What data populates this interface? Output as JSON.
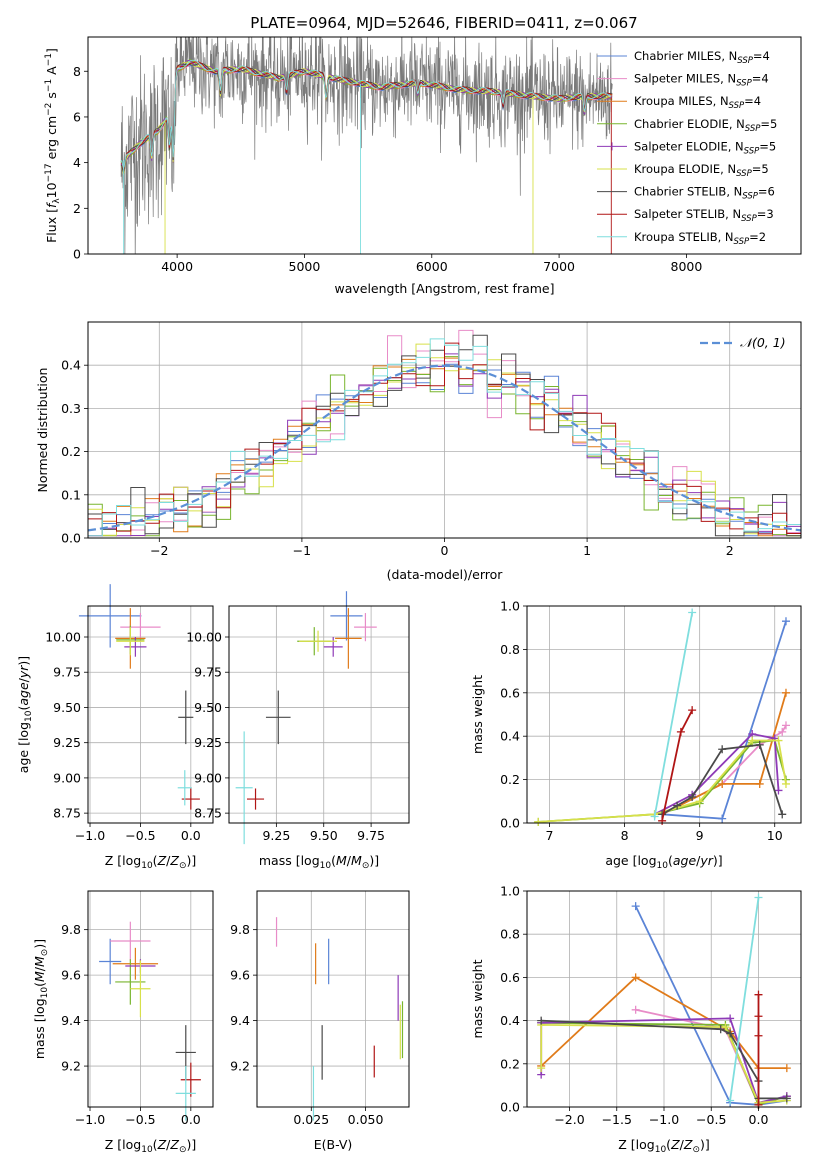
{
  "colors": {
    "chabrier_miles": "#5b84d6",
    "salpeter_miles": "#e88cc8",
    "kroupa_miles": "#e07b1a",
    "chabrier_elodie": "#79b52f",
    "salpeter_elodie": "#8e3ab7",
    "kroupa_elodie": "#d7e04a",
    "chabrier_stelib": "#4a4a4a",
    "salpeter_stelib": "#b01515",
    "kroupa_stelib": "#7fdede",
    "data": "#7a7a7a",
    "gaussian": "#5b8fd6"
  },
  "legend_spectrum": [
    {
      "key": "chabrier_miles",
      "pre": "Chabrier MILES, N",
      "sub": "SSP",
      "post": "=4"
    },
    {
      "key": "salpeter_miles",
      "pre": "Salpeter MILES, N",
      "sub": "SSP",
      "post": "=4"
    },
    {
      "key": "kroupa_miles",
      "pre": "Kroupa MILES, N",
      "sub": "SSP",
      "post": "=4"
    },
    {
      "key": "chabrier_elodie",
      "pre": "Chabrier ELODIE, N",
      "sub": "SSP",
      "post": "=5"
    },
    {
      "key": "salpeter_elodie",
      "pre": "Salpeter ELODIE, N",
      "sub": "SSP",
      "post": "=5"
    },
    {
      "key": "kroupa_elodie",
      "pre": "Kroupa ELODIE, N",
      "sub": "SSP",
      "post": "=5"
    },
    {
      "key": "chabrier_stelib",
      "pre": "Chabrier STELIB, N",
      "sub": "SSP",
      "post": "=6"
    },
    {
      "key": "salpeter_stelib",
      "pre": "Salpeter STELIB, N",
      "sub": "SSP",
      "post": "=3"
    },
    {
      "key": "kroupa_stelib",
      "pre": "Kroupa STELIB, N",
      "sub": "SSP",
      "post": "=2"
    }
  ],
  "chart_data": [
    {
      "id": "spectrum",
      "type": "line",
      "title": "PLATE=0964, MJD=52646, FIBERID=0411, z=0.067",
      "xlabel": "wavelength [Angstrom, rest frame]",
      "ylabel": "Flux [f_λ 10^-17 erg cm^-2 s^-1 A^-1]",
      "xlim": [
        3300,
        8900
      ],
      "ylim": [
        0,
        9.5
      ],
      "xticks": [
        4000,
        5000,
        6000,
        7000,
        8000
      ],
      "yticks": [
        0,
        2,
        4,
        6,
        8
      ],
      "continuum": [
        [
          3560,
          4.0
        ],
        [
          3700,
          4.8
        ],
        [
          3850,
          5.4
        ],
        [
          3950,
          6.2
        ],
        [
          4000,
          8.1
        ],
        [
          4100,
          8.4
        ],
        [
          4300,
          8.0
        ],
        [
          4500,
          8.1
        ],
        [
          4800,
          7.7
        ],
        [
          5000,
          8.0
        ],
        [
          5300,
          7.6
        ],
        [
          5600,
          7.3
        ],
        [
          5900,
          7.5
        ],
        [
          6200,
          7.2
        ],
        [
          6500,
          7.1
        ],
        [
          6800,
          6.9
        ],
        [
          7000,
          6.8
        ],
        [
          7200,
          6.9
        ],
        [
          7400,
          6.9
        ]
      ],
      "dips": [
        [
          3580,
          3.6
        ],
        [
          3800,
          4.2
        ],
        [
          3940,
          4.6
        ],
        [
          3970,
          4.1
        ],
        [
          4340,
          7.0
        ],
        [
          4860,
          7.1
        ],
        [
          5170,
          6.9
        ],
        [
          5890,
          7.0
        ],
        [
          6560,
          6.5
        ],
        [
          7200,
          6.2
        ]
      ]
    },
    {
      "id": "residuals",
      "type": "histogram",
      "xlabel": "(data-model)/error",
      "ylabel": "Normed distribution",
      "xlim": [
        -2.5,
        2.5
      ],
      "ylim": [
        0,
        0.5
      ],
      "xticks": [
        -2,
        -1,
        0,
        1,
        2
      ],
      "yticks": [
        0.0,
        0.1,
        0.2,
        0.3,
        0.4
      ],
      "bin_width": 0.1,
      "legend": "𝒩(0, 1)",
      "gaussian": {
        "mean": 0,
        "sigma": 1
      }
    },
    {
      "id": "age_vs_Z",
      "type": "scatter-errorbar",
      "xlabel": "Z [log10(Z/Z☉)]",
      "ylabel": "age [log10(age/yr)]",
      "xlim": [
        -1.02,
        0.22
      ],
      "ylim": [
        8.68,
        10.22
      ],
      "xticks": [
        -1.0,
        -0.5,
        0.0
      ],
      "yticks": [
        8.75,
        9.0,
        9.25,
        9.5,
        9.75,
        10.0
      ],
      "points": [
        {
          "key": "chabrier_miles",
          "x": -0.8,
          "xerr": 0.62,
          "y": 10.15,
          "yerr": 0.45
        },
        {
          "key": "salpeter_miles",
          "x": -0.5,
          "xerr": 0.4,
          "y": 10.07,
          "yerr": 0.2
        },
        {
          "key": "kroupa_miles",
          "x": -0.6,
          "xerr": 0.3,
          "y": 9.99,
          "yerr": 0.43
        },
        {
          "key": "chabrier_elodie",
          "x": -0.6,
          "xerr": 0.28,
          "y": 9.98,
          "yerr": 0.2
        },
        {
          "key": "salpeter_elodie",
          "x": -0.55,
          "xerr": 0.22,
          "y": 9.93,
          "yerr": 0.14
        },
        {
          "key": "kroupa_elodie",
          "x": -0.6,
          "xerr": 0.28,
          "y": 9.97,
          "yerr": 0.2
        },
        {
          "key": "chabrier_stelib",
          "x": -0.05,
          "xerr": 0.15,
          "y": 9.43,
          "yerr": 0.38
        },
        {
          "key": "salpeter_stelib",
          "x": 0.0,
          "xerr": 0.18,
          "y": 8.85,
          "yerr": 0.15
        },
        {
          "key": "kroupa_stelib",
          "x": -0.06,
          "xerr": 0.14,
          "y": 8.93,
          "yerr": 0.25
        }
      ]
    },
    {
      "id": "age_vs_mass",
      "type": "scatter-errorbar",
      "xlabel": "mass [log10(M/M☉)]",
      "ylabel": "",
      "xlim": [
        9.0,
        9.95
      ],
      "ylim": [
        8.68,
        10.22
      ],
      "xticks": [
        9.25,
        9.5,
        9.75
      ],
      "yticks": [
        8.75,
        9.0,
        9.25,
        9.5,
        9.75,
        10.0
      ],
      "points": [
        {
          "key": "chabrier_miles",
          "x": 9.62,
          "xerr": 0.17,
          "y": 10.15,
          "yerr": 0.35
        },
        {
          "key": "salpeter_miles",
          "x": 9.72,
          "xerr": 0.12,
          "y": 10.07,
          "yerr": 0.2
        },
        {
          "key": "kroupa_miles",
          "x": 9.63,
          "xerr": 0.14,
          "y": 9.99,
          "yerr": 0.43
        },
        {
          "key": "chabrier_elodie",
          "x": 9.45,
          "xerr": 0.18,
          "y": 9.97,
          "yerr": 0.2
        },
        {
          "key": "salpeter_elodie",
          "x": 9.55,
          "xerr": 0.1,
          "y": 9.93,
          "yerr": 0.14
        },
        {
          "key": "kroupa_elodie",
          "x": 9.47,
          "xerr": 0.2,
          "y": 9.97,
          "yerr": 0.15
        },
        {
          "key": "chabrier_stelib",
          "x": 9.26,
          "xerr": 0.13,
          "y": 9.43,
          "yerr": 0.38
        },
        {
          "key": "salpeter_stelib",
          "x": 9.14,
          "xerr": 0.09,
          "y": 8.85,
          "yerr": 0.15
        },
        {
          "key": "kroupa_stelib",
          "x": 9.08,
          "xerr": 0.09,
          "y": 8.93,
          "yerr": 0.8
        }
      ]
    },
    {
      "id": "weight_vs_age",
      "type": "line",
      "xlabel": "age [log10(age/yr)]",
      "ylabel": "mass weight",
      "xlim": [
        6.7,
        10.35
      ],
      "ylim": [
        0,
        1.0
      ],
      "xticks": [
        7,
        8,
        9,
        10
      ],
      "yticks": [
        0.0,
        0.2,
        0.4,
        0.6,
        0.8,
        1.0
      ],
      "series": [
        {
          "key": "chabrier_miles",
          "points": [
            [
              8.5,
              0.04
            ],
            [
              9.3,
              0.02
            ],
            [
              10.15,
              0.93
            ]
          ]
        },
        {
          "key": "salpeter_miles",
          "points": [
            [
              8.5,
              0.04
            ],
            [
              9.3,
              0.18
            ],
            [
              9.8,
              0.36
            ],
            [
              10.1,
              0.42
            ],
            [
              10.15,
              0.45
            ]
          ]
        },
        {
          "key": "kroupa_miles",
          "points": [
            [
              8.5,
              0.04
            ],
            [
              9.3,
              0.18
            ],
            [
              9.8,
              0.18
            ],
            [
              10.15,
              0.6
            ]
          ]
        },
        {
          "key": "chabrier_elodie",
          "points": [
            [
              6.85,
              0.005
            ],
            [
              8.4,
              0.04
            ],
            [
              9.0,
              0.09
            ],
            [
              9.7,
              0.37
            ],
            [
              10.0,
              0.38
            ],
            [
              10.15,
              0.2
            ]
          ]
        },
        {
          "key": "salpeter_elodie",
          "points": [
            [
              8.4,
              0.04
            ],
            [
              8.9,
              0.13
            ],
            [
              9.7,
              0.41
            ],
            [
              10.0,
              0.39
            ],
            [
              10.05,
              0.15
            ]
          ]
        },
        {
          "key": "kroupa_elodie",
          "points": [
            [
              6.85,
              0.005
            ],
            [
              8.4,
              0.04
            ],
            [
              9.0,
              0.1
            ],
            [
              9.7,
              0.38
            ],
            [
              10.05,
              0.38
            ],
            [
              10.15,
              0.18
            ]
          ]
        },
        {
          "key": "chabrier_stelib",
          "points": [
            [
              8.5,
              0.04
            ],
            [
              8.7,
              0.08
            ],
            [
              8.9,
              0.12
            ],
            [
              9.3,
              0.34
            ],
            [
              9.8,
              0.36
            ],
            [
              10.1,
              0.04
            ]
          ]
        },
        {
          "key": "salpeter_stelib",
          "points": [
            [
              8.5,
              0.01
            ],
            [
              8.75,
              0.42
            ],
            [
              8.9,
              0.52
            ]
          ]
        },
        {
          "key": "kroupa_stelib",
          "points": [
            [
              8.4,
              0.03
            ],
            [
              8.9,
              0.97
            ]
          ]
        }
      ]
    },
    {
      "id": "mass_vs_Z",
      "type": "scatter-errorbar",
      "xlabel": "Z [log10(Z/Z☉)]",
      "ylabel": "mass [log10(M/M☉)]",
      "xlim": [
        -1.02,
        0.22
      ],
      "ylim": [
        9.02,
        9.97
      ],
      "xticks": [
        -1.0,
        -0.5,
        0.0
      ],
      "yticks": [
        9.2,
        9.4,
        9.6,
        9.8
      ],
      "points": [
        {
          "key": "chabrier_miles",
          "x": -0.8,
          "xerr": 0.22,
          "y": 9.66,
          "yerr": 0.2
        },
        {
          "key": "salpeter_miles",
          "x": -0.6,
          "xerr": 0.4,
          "y": 9.75,
          "yerr": 0.17
        },
        {
          "key": "kroupa_miles",
          "x": -0.55,
          "xerr": 0.45,
          "y": 9.65,
          "yerr": 0.14
        },
        {
          "key": "chabrier_elodie",
          "x": -0.6,
          "xerr": 0.3,
          "y": 9.57,
          "yerr": 0.2
        },
        {
          "key": "salpeter_elodie",
          "x": -0.5,
          "xerr": 0.3,
          "y": 9.64,
          "yerr": 0.06
        },
        {
          "key": "kroupa_elodie",
          "x": -0.5,
          "xerr": 0.2,
          "y": 9.54,
          "yerr": 0.25
        },
        {
          "key": "chabrier_stelib",
          "x": -0.05,
          "xerr": 0.2,
          "y": 9.26,
          "yerr": 0.24
        },
        {
          "key": "salpeter_stelib",
          "x": 0.0,
          "xerr": 0.2,
          "y": 9.14,
          "yerr": 0.15
        },
        {
          "key": "kroupa_stelib",
          "x": -0.05,
          "xerr": 0.2,
          "y": 9.08,
          "yerr": 0.24
        }
      ]
    },
    {
      "id": "mass_vs_EBV",
      "type": "scatter-errorbar",
      "xlabel": "E(B-V)",
      "ylabel": "",
      "xlim": [
        0.0,
        0.07
      ],
      "ylim": [
        9.02,
        9.97
      ],
      "xticks": [
        0.025,
        0.05
      ],
      "yticks": [
        9.2,
        9.4,
        9.6,
        9.8
      ],
      "points": [
        {
          "key": "chabrier_miles",
          "x": 0.033,
          "xerr": 0,
          "y": 9.66,
          "yerr": 0.2
        },
        {
          "key": "salpeter_miles",
          "x": 0.009,
          "xerr": 0,
          "y": 9.79,
          "yerr": 0.13
        },
        {
          "key": "kroupa_miles",
          "x": 0.027,
          "xerr": 0,
          "y": 9.65,
          "yerr": 0.18
        },
        {
          "key": "chabrier_elodie",
          "x": 0.067,
          "xerr": 0,
          "y": 9.36,
          "yerr": 0.25
        },
        {
          "key": "salpeter_elodie",
          "x": 0.065,
          "xerr": 0,
          "y": 9.5,
          "yerr": 0.2
        },
        {
          "key": "kroupa_elodie",
          "x": 0.066,
          "xerr": 0,
          "y": 9.35,
          "yerr": 0.24
        },
        {
          "key": "chabrier_stelib",
          "x": 0.03,
          "xerr": 0,
          "y": 9.26,
          "yerr": 0.24
        },
        {
          "key": "salpeter_stelib",
          "x": 0.054,
          "xerr": 0,
          "y": 9.22,
          "yerr": 0.14
        },
        {
          "key": "kroupa_stelib",
          "x": 0.026,
          "xerr": 0,
          "y": 9.08,
          "yerr": 0.24
        }
      ]
    },
    {
      "id": "weight_vs_Z",
      "type": "line",
      "xlabel": "Z [log10(Z/Z☉)]",
      "ylabel": "mass weight",
      "xlim": [
        -2.45,
        0.45
      ],
      "ylim": [
        0,
        1.0
      ],
      "xticks": [
        -2.0,
        -1.5,
        -1.0,
        -0.5,
        0.0
      ],
      "yticks": [
        0.0,
        0.2,
        0.4,
        0.6,
        0.8,
        1.0
      ],
      "series": [
        {
          "key": "chabrier_miles",
          "points": [
            [
              -1.3,
              0.93
            ],
            [
              -0.3,
              0.02
            ],
            [
              0.0,
              0.01
            ],
            [
              0.3,
              0.03
            ]
          ]
        },
        {
          "key": "salpeter_miles",
          "points": [
            [
              -1.3,
              0.45
            ],
            [
              -0.35,
              0.36
            ],
            [
              0.0,
              0.01
            ],
            [
              0.3,
              0.05
            ]
          ]
        },
        {
          "key": "kroupa_miles",
          "points": [
            [
              -2.3,
              0.19
            ],
            [
              -1.3,
              0.6
            ],
            [
              -0.3,
              0.35
            ],
            [
              0.0,
              0.18
            ],
            [
              0.3,
              0.18
            ]
          ]
        },
        {
          "key": "chabrier_elodie",
          "points": [
            [
              -2.3,
              0.39
            ],
            [
              -0.35,
              0.38
            ],
            [
              0.0,
              0.01
            ],
            [
              0.3,
              0.05
            ]
          ]
        },
        {
          "key": "salpeter_elodie",
          "points": [
            [
              -2.3,
              0.15
            ],
            [
              -2.3,
              0.39
            ],
            [
              -0.3,
              0.41
            ],
            [
              0.0,
              0.02
            ],
            [
              0.3,
              0.05
            ]
          ]
        },
        {
          "key": "kroupa_elodie",
          "points": [
            [
              -2.3,
              0.18
            ],
            [
              -2.3,
              0.38
            ],
            [
              -0.35,
              0.37
            ],
            [
              0.0,
              0.02
            ],
            [
              0.3,
              0.03
            ]
          ]
        },
        {
          "key": "chabrier_stelib",
          "points": [
            [
              -2.3,
              0.4
            ],
            [
              -0.4,
              0.36
            ],
            [
              -0.3,
              0.34
            ],
            [
              0.0,
              0.12
            ],
            [
              0.0,
              0.04
            ],
            [
              0.3,
              0.04
            ]
          ]
        },
        {
          "key": "salpeter_stelib",
          "points": [
            [
              0.0,
              0.01
            ],
            [
              0.0,
              0.33
            ],
            [
              0.0,
              0.42
            ],
            [
              0.0,
              0.52
            ]
          ]
        },
        {
          "key": "kroupa_stelib",
          "points": [
            [
              -0.3,
              0.03
            ],
            [
              0.0,
              0.97
            ]
          ]
        }
      ]
    }
  ]
}
